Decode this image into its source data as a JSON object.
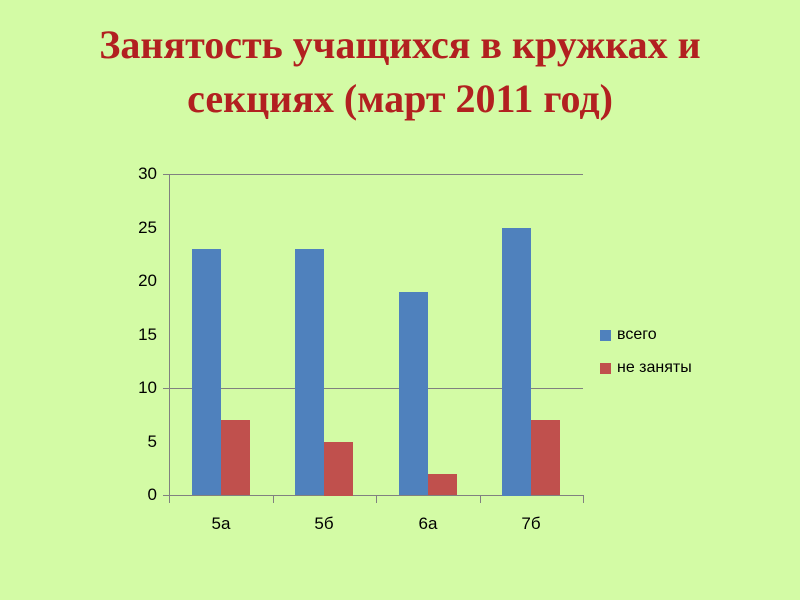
{
  "slide": {
    "background_color": "#d3fba5",
    "title": {
      "lines": [
        "Занятость учащихся в кружках и",
        "секциях (март 2011 год)"
      ],
      "full": "Занятость учащихся в кружках и секциях (март 2011 год)",
      "color": "#b22020"
    }
  },
  "chart_data": {
    "type": "bar",
    "title": "Занятость учащихся в кружках и секциях (март 2011 год)",
    "categories": [
      "5а",
      "5б",
      "6а",
      "7б"
    ],
    "series": [
      {
        "name": "всего",
        "color": "#4f81bd",
        "values": [
          23,
          23,
          19,
          25
        ]
      },
      {
        "name": "не заняты",
        "color": "#c0504d",
        "values": [
          7,
          5,
          2,
          7
        ]
      }
    ],
    "ylim": [
      0,
      30
    ],
    "yticks": [
      0,
      5,
      10,
      15,
      20,
      25,
      30
    ],
    "gridlines_at": [
      10,
      30
    ],
    "axis_ticks_at": [
      0,
      10,
      30
    ],
    "grid": "horizontal-partial",
    "legend_position": "right",
    "xlabel": "",
    "ylabel": "",
    "axis_color": "#808080",
    "text_color": "#000000"
  }
}
